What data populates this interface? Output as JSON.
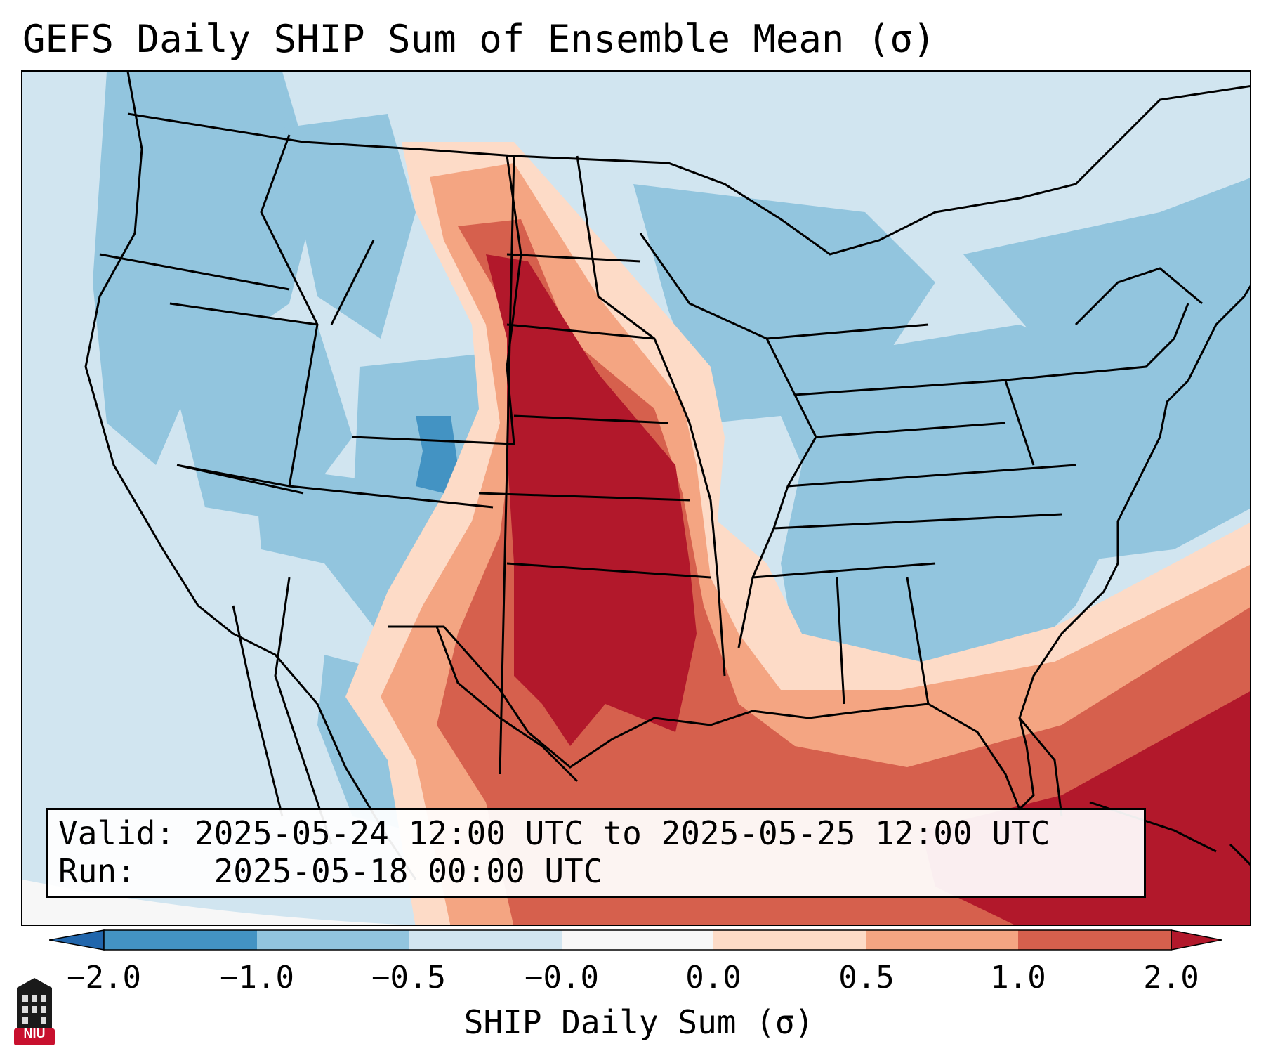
{
  "title": "GEFS Daily SHIP Sum of Ensemble Mean (σ)",
  "info": {
    "valid_label": "Valid:",
    "valid_value": "2025-05-24 12:00 UTC to 2025-05-25 12:00 UTC",
    "run_label": "Run:",
    "run_value": "2025-05-18 00:00 UTC"
  },
  "colorbar": {
    "label": "SHIP Daily Sum (σ)",
    "ticks": [
      "−2.0",
      "−1.0",
      "−0.5",
      "−0.0",
      "0.0",
      "0.5",
      "1.0",
      "2.0"
    ],
    "colors": [
      "#4393c3",
      "#92c5de",
      "#d1e5f0",
      "#f7f7f7",
      "#fddbc7",
      "#f4a582",
      "#d6604d"
    ],
    "under_color": "#2166ac",
    "over_color": "#b2182b"
  },
  "map": {
    "region": "Contiguous United States",
    "field_colors": {
      "very_high": "#b2182b",
      "high": "#d6604d",
      "moderate": "#f4a582",
      "slight": "#fddbc7",
      "near_zero": "#f7f7f7",
      "below_slight": "#d1e5f0",
      "below": "#92c5de",
      "below_strong": "#4393c3"
    }
  },
  "logo": {
    "text": "NIU",
    "color": "#c8102e"
  }
}
